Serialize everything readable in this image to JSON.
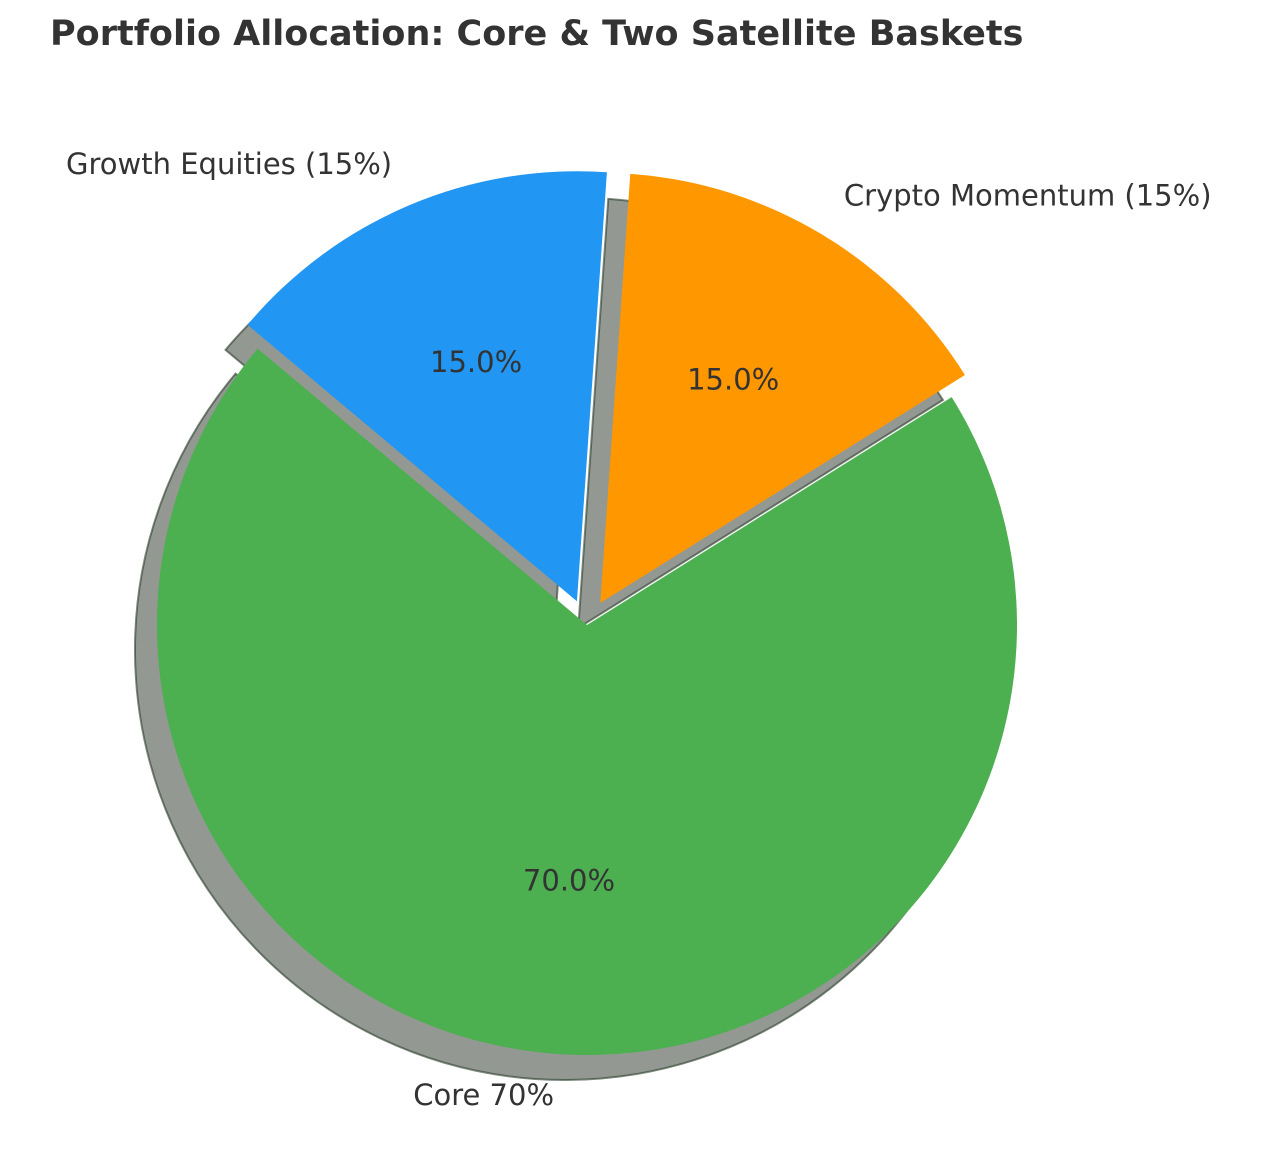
{
  "chart_data": {
    "type": "pie",
    "title": "Portfolio Allocation: Core & Two Satellite Baskets",
    "start_angle_deg": 140,
    "direction": "counterclockwise",
    "shadow": true,
    "slices": [
      {
        "label": "Core 70%",
        "value": 70,
        "pct_label": "70.0%",
        "color": "#4CAF50",
        "explode": 0.0
      },
      {
        "label": "Crypto Momentum (15%)",
        "value": 15,
        "pct_label": "15.0%",
        "color": "#FF9800",
        "explode": 0.06
      },
      {
        "label": "Growth Equities (15%)",
        "value": 15,
        "pct_label": "15.0%",
        "color": "#2196F3",
        "explode": 0.06
      }
    ]
  }
}
